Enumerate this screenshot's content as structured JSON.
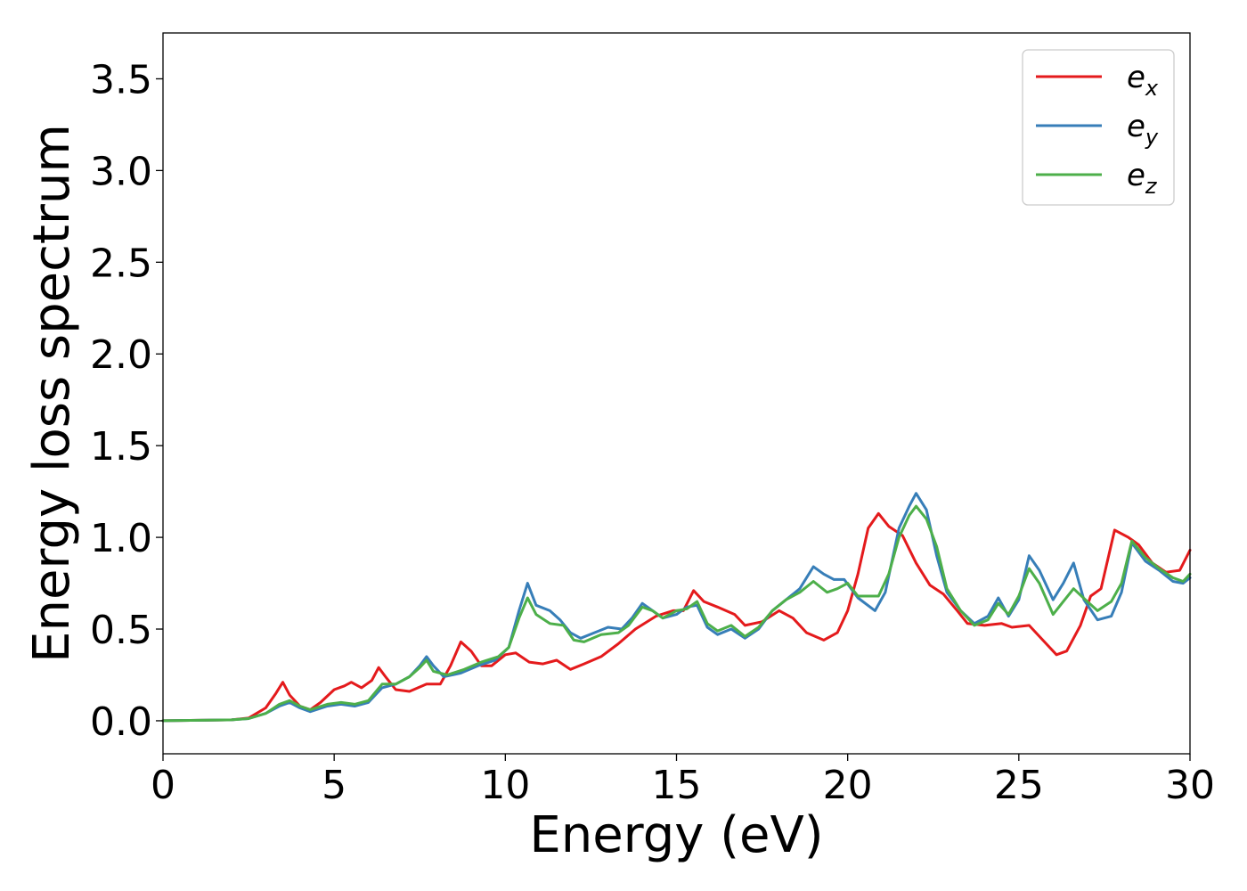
{
  "chart_data": {
    "type": "line",
    "xlabel": "Energy (eV)",
    "ylabel": "Energy loss spectrum",
    "xlim": [
      0,
      30
    ],
    "ylim": [
      -0.18,
      3.75
    ],
    "xticks": [
      0,
      5,
      10,
      15,
      20,
      25,
      30
    ],
    "xtick_labels": [
      "0",
      "5",
      "10",
      "15",
      "20",
      "25",
      "30"
    ],
    "yticks": [
      0.0,
      0.5,
      1.0,
      1.5,
      2.0,
      2.5,
      3.0,
      3.5
    ],
    "ytick_labels": [
      "0.0",
      "0.5",
      "1.0",
      "1.5",
      "2.0",
      "2.5",
      "3.0",
      "3.5"
    ],
    "grid": false,
    "legend_position": "top-right",
    "series": [
      {
        "base": "e",
        "sub": "x",
        "color": "#e41a1c",
        "points": [
          [
            0,
            0
          ],
          [
            2,
            0.005
          ],
          [
            2.5,
            0.015
          ],
          [
            3,
            0.07
          ],
          [
            3.3,
            0.15
          ],
          [
            3.5,
            0.21
          ],
          [
            3.7,
            0.14
          ],
          [
            4,
            0.08
          ],
          [
            4.3,
            0.06
          ],
          [
            4.6,
            0.1
          ],
          [
            5,
            0.17
          ],
          [
            5.3,
            0.19
          ],
          [
            5.5,
            0.21
          ],
          [
            5.8,
            0.18
          ],
          [
            6.1,
            0.22
          ],
          [
            6.3,
            0.29
          ],
          [
            6.5,
            0.24
          ],
          [
            6.8,
            0.17
          ],
          [
            7.2,
            0.16
          ],
          [
            7.7,
            0.2
          ],
          [
            8.1,
            0.2
          ],
          [
            8.4,
            0.3
          ],
          [
            8.7,
            0.43
          ],
          [
            9,
            0.38
          ],
          [
            9.3,
            0.3
          ],
          [
            9.6,
            0.3
          ],
          [
            10,
            0.36
          ],
          [
            10.3,
            0.37
          ],
          [
            10.7,
            0.32
          ],
          [
            11.1,
            0.31
          ],
          [
            11.5,
            0.33
          ],
          [
            11.9,
            0.28
          ],
          [
            12.3,
            0.31
          ],
          [
            12.8,
            0.35
          ],
          [
            13.3,
            0.42
          ],
          [
            13.8,
            0.5
          ],
          [
            14.4,
            0.57
          ],
          [
            14.9,
            0.6
          ],
          [
            15.2,
            0.6
          ],
          [
            15.5,
            0.71
          ],
          [
            15.8,
            0.65
          ],
          [
            16.2,
            0.62
          ],
          [
            16.7,
            0.58
          ],
          [
            17,
            0.52
          ],
          [
            17.5,
            0.54
          ],
          [
            18,
            0.6
          ],
          [
            18.4,
            0.56
          ],
          [
            18.8,
            0.48
          ],
          [
            19.3,
            0.44
          ],
          [
            19.7,
            0.48
          ],
          [
            20,
            0.6
          ],
          [
            20.3,
            0.8
          ],
          [
            20.6,
            1.05
          ],
          [
            20.9,
            1.13
          ],
          [
            21.2,
            1.06
          ],
          [
            21.6,
            1.01
          ],
          [
            22,
            0.86
          ],
          [
            22.4,
            0.74
          ],
          [
            22.8,
            0.69
          ],
          [
            23.2,
            0.6
          ],
          [
            23.5,
            0.53
          ],
          [
            24,
            0.52
          ],
          [
            24.5,
            0.53
          ],
          [
            24.8,
            0.51
          ],
          [
            25.3,
            0.52
          ],
          [
            25.8,
            0.42
          ],
          [
            26.1,
            0.36
          ],
          [
            26.4,
            0.38
          ],
          [
            26.8,
            0.52
          ],
          [
            27.1,
            0.68
          ],
          [
            27.4,
            0.72
          ],
          [
            27.8,
            1.04
          ],
          [
            28.2,
            1.0
          ],
          [
            28.5,
            0.96
          ],
          [
            28.9,
            0.86
          ],
          [
            29.3,
            0.81
          ],
          [
            29.7,
            0.82
          ],
          [
            30,
            0.93
          ]
        ]
      },
      {
        "base": "e",
        "sub": "y",
        "color": "#377eb8",
        "points": [
          [
            0,
            0
          ],
          [
            2,
            0.005
          ],
          [
            2.5,
            0.012
          ],
          [
            3,
            0.04
          ],
          [
            3.4,
            0.08
          ],
          [
            3.7,
            0.1
          ],
          [
            4,
            0.07
          ],
          [
            4.3,
            0.05
          ],
          [
            4.8,
            0.08
          ],
          [
            5.2,
            0.09
          ],
          [
            5.6,
            0.08
          ],
          [
            6,
            0.1
          ],
          [
            6.4,
            0.18
          ],
          [
            6.8,
            0.2
          ],
          [
            7.2,
            0.24
          ],
          [
            7.5,
            0.3
          ],
          [
            7.7,
            0.35
          ],
          [
            7.9,
            0.3
          ],
          [
            8.2,
            0.24
          ],
          [
            8.7,
            0.26
          ],
          [
            9.2,
            0.3
          ],
          [
            9.7,
            0.33
          ],
          [
            10.1,
            0.4
          ],
          [
            10.4,
            0.6
          ],
          [
            10.65,
            0.75
          ],
          [
            10.9,
            0.63
          ],
          [
            11.3,
            0.6
          ],
          [
            11.6,
            0.55
          ],
          [
            11.9,
            0.48
          ],
          [
            12.2,
            0.45
          ],
          [
            12.6,
            0.48
          ],
          [
            13,
            0.51
          ],
          [
            13.4,
            0.5
          ],
          [
            13.7,
            0.56
          ],
          [
            14,
            0.64
          ],
          [
            14.3,
            0.6
          ],
          [
            14.6,
            0.56
          ],
          [
            15,
            0.58
          ],
          [
            15.3,
            0.62
          ],
          [
            15.6,
            0.63
          ],
          [
            15.9,
            0.51
          ],
          [
            16.2,
            0.47
          ],
          [
            16.6,
            0.5
          ],
          [
            17,
            0.45
          ],
          [
            17.4,
            0.5
          ],
          [
            17.8,
            0.6
          ],
          [
            18.2,
            0.66
          ],
          [
            18.6,
            0.72
          ],
          [
            19,
            0.84
          ],
          [
            19.3,
            0.8
          ],
          [
            19.6,
            0.77
          ],
          [
            19.9,
            0.77
          ],
          [
            20.3,
            0.67
          ],
          [
            20.8,
            0.6
          ],
          [
            21.1,
            0.7
          ],
          [
            21.5,
            1.05
          ],
          [
            21.8,
            1.17
          ],
          [
            22,
            1.24
          ],
          [
            22.3,
            1.15
          ],
          [
            22.6,
            0.9
          ],
          [
            22.9,
            0.7
          ],
          [
            23.3,
            0.6
          ],
          [
            23.7,
            0.53
          ],
          [
            24.1,
            0.57
          ],
          [
            24.4,
            0.67
          ],
          [
            24.7,
            0.57
          ],
          [
            25,
            0.66
          ],
          [
            25.3,
            0.9
          ],
          [
            25.6,
            0.82
          ],
          [
            26,
            0.66
          ],
          [
            26.3,
            0.75
          ],
          [
            26.6,
            0.86
          ],
          [
            26.9,
            0.66
          ],
          [
            27.3,
            0.55
          ],
          [
            27.7,
            0.57
          ],
          [
            28,
            0.7
          ],
          [
            28.3,
            0.97
          ],
          [
            28.7,
            0.87
          ],
          [
            29.1,
            0.82
          ],
          [
            29.5,
            0.76
          ],
          [
            29.8,
            0.75
          ],
          [
            30,
            0.78
          ]
        ]
      },
      {
        "base": "e",
        "sub": "z",
        "color": "#4daf4a",
        "points": [
          [
            0,
            0
          ],
          [
            2,
            0.005
          ],
          [
            2.5,
            0.012
          ],
          [
            3,
            0.04
          ],
          [
            3.4,
            0.09
          ],
          [
            3.7,
            0.11
          ],
          [
            4,
            0.08
          ],
          [
            4.3,
            0.06
          ],
          [
            4.8,
            0.09
          ],
          [
            5.2,
            0.1
          ],
          [
            5.6,
            0.09
          ],
          [
            6,
            0.11
          ],
          [
            6.4,
            0.2
          ],
          [
            6.8,
            0.2
          ],
          [
            7.2,
            0.24
          ],
          [
            7.5,
            0.29
          ],
          [
            7.7,
            0.33
          ],
          [
            7.9,
            0.27
          ],
          [
            8.3,
            0.25
          ],
          [
            8.8,
            0.28
          ],
          [
            9.3,
            0.32
          ],
          [
            9.8,
            0.35
          ],
          [
            10.1,
            0.4
          ],
          [
            10.4,
            0.56
          ],
          [
            10.65,
            0.67
          ],
          [
            10.9,
            0.58
          ],
          [
            11.3,
            0.53
          ],
          [
            11.7,
            0.52
          ],
          [
            12,
            0.44
          ],
          [
            12.3,
            0.43
          ],
          [
            12.8,
            0.47
          ],
          [
            13.3,
            0.48
          ],
          [
            13.6,
            0.52
          ],
          [
            14,
            0.62
          ],
          [
            14.3,
            0.6
          ],
          [
            14.6,
            0.56
          ],
          [
            15,
            0.6
          ],
          [
            15.3,
            0.61
          ],
          [
            15.6,
            0.65
          ],
          [
            15.9,
            0.53
          ],
          [
            16.2,
            0.49
          ],
          [
            16.6,
            0.52
          ],
          [
            17,
            0.46
          ],
          [
            17.4,
            0.51
          ],
          [
            17.8,
            0.6
          ],
          [
            18.2,
            0.66
          ],
          [
            18.6,
            0.7
          ],
          [
            19,
            0.76
          ],
          [
            19.4,
            0.7
          ],
          [
            19.7,
            0.72
          ],
          [
            20,
            0.75
          ],
          [
            20.3,
            0.68
          ],
          [
            20.6,
            0.68
          ],
          [
            20.9,
            0.68
          ],
          [
            21.2,
            0.8
          ],
          [
            21.5,
            1.0
          ],
          [
            21.8,
            1.12
          ],
          [
            22,
            1.17
          ],
          [
            22.3,
            1.1
          ],
          [
            22.6,
            0.95
          ],
          [
            22.9,
            0.72
          ],
          [
            23.3,
            0.6
          ],
          [
            23.7,
            0.52
          ],
          [
            24.1,
            0.55
          ],
          [
            24.4,
            0.64
          ],
          [
            24.7,
            0.58
          ],
          [
            25,
            0.68
          ],
          [
            25.3,
            0.83
          ],
          [
            25.6,
            0.75
          ],
          [
            26,
            0.58
          ],
          [
            26.3,
            0.65
          ],
          [
            26.6,
            0.72
          ],
          [
            27,
            0.65
          ],
          [
            27.3,
            0.6
          ],
          [
            27.7,
            0.65
          ],
          [
            28,
            0.75
          ],
          [
            28.3,
            0.98
          ],
          [
            28.7,
            0.89
          ],
          [
            29.1,
            0.83
          ],
          [
            29.5,
            0.78
          ],
          [
            29.8,
            0.76
          ],
          [
            30,
            0.8
          ]
        ]
      }
    ]
  }
}
